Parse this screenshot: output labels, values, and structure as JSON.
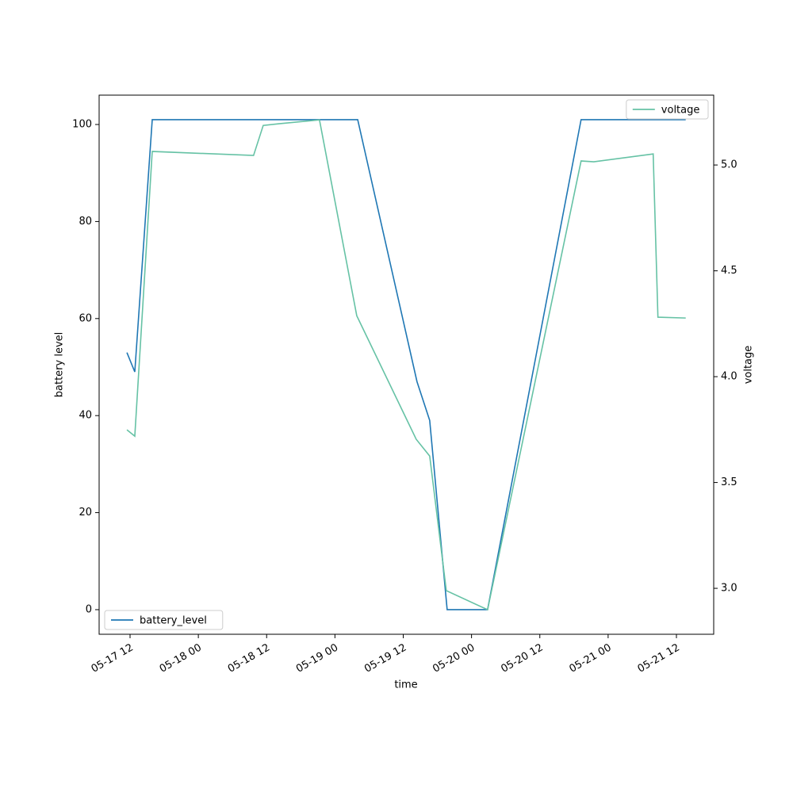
{
  "chart_data": {
    "type": "line",
    "xlabel": "time",
    "ylabel": "battery level",
    "y2label": "voltage",
    "xlim": [
      "05-17 06:34",
      "05-21 18:33"
    ],
    "xticks": [
      "05-17 12",
      "05-18 00",
      "05-18 12",
      "05-19 00",
      "05-19 12",
      "05-20 00",
      "05-20 12",
      "05-21 00",
      "05-21 12"
    ],
    "ylim": [
      -5.07,
      106.05
    ],
    "yticks": [
      0,
      20,
      40,
      60,
      80,
      100
    ],
    "y2lim": [
      2.783,
      5.33
    ],
    "y2ticks": [
      {
        "value": 3,
        "label": "3.0"
      },
      {
        "value": 3.5,
        "label": "3.5"
      },
      {
        "value": 4,
        "label": "4.0"
      },
      {
        "value": 4.5,
        "label": "4.5"
      },
      {
        "value": 5,
        "label": "5.0"
      }
    ],
    "series": [
      {
        "name": "battery_level",
        "color": "#1f77b4",
        "axis": "y",
        "legend": "lower left",
        "x": [
          "05-17 11:27",
          "05-17 12:50",
          "05-17 15:54",
          "05-19 04:00",
          "05-19 14:25",
          "05-19 16:39",
          "05-19 19:43",
          "05-20 02:49",
          "05-20 19:15",
          "05-21 13:38"
        ],
        "values": [
          53,
          49,
          101,
          101,
          47,
          39,
          0,
          0,
          101,
          101
        ]
      },
      {
        "name": "voltage",
        "color": "#66c2a5",
        "axis": "y2",
        "legend": "upper right",
        "x": [
          "05-17 11:27",
          "05-17 12:50",
          "05-17 15:54",
          "05-18 09:42",
          "05-18 11:24",
          "05-18 14:11",
          "05-18 21:17",
          "05-19 03:50",
          "05-19 14:17",
          "05-19 16:39",
          "05-19 19:34",
          "05-20 02:49",
          "05-20 19:15",
          "05-20 21:29",
          "05-21 07:55",
          "05-21 08:45",
          "05-21 13:38"
        ],
        "values": [
          3.749,
          3.719,
          5.064,
          5.045,
          5.187,
          5.195,
          5.213,
          4.288,
          3.704,
          3.625,
          2.989,
          2.899,
          5.019,
          5.015,
          5.052,
          4.281,
          4.277
        ]
      }
    ]
  }
}
